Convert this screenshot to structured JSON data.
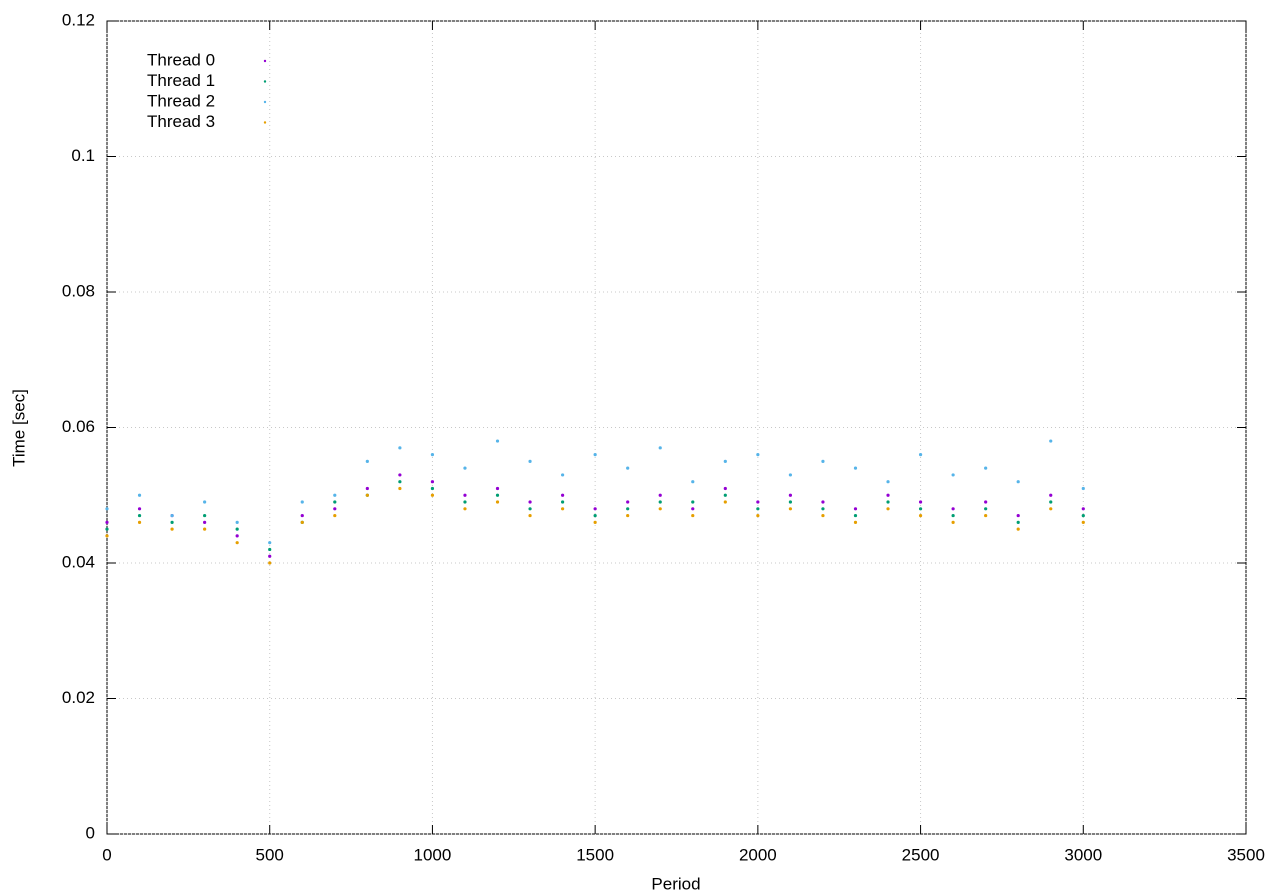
{
  "chart_data": {
    "type": "scatter",
    "xlabel": "Period",
    "ylabel": "Time [sec]",
    "x": [
      0,
      100,
      200,
      300,
      400,
      500,
      600,
      700,
      800,
      900,
      1000,
      1100,
      1200,
      1300,
      1400,
      1500,
      1600,
      1700,
      1800,
      1900,
      2000,
      2100,
      2200,
      2300,
      2400,
      2500,
      2600,
      2700,
      2800,
      2900,
      3000
    ],
    "series": [
      {
        "name": "Thread 0",
        "color": "#9400d3",
        "values": [
          0.046,
          0.048,
          0.047,
          0.046,
          0.044,
          0.041,
          0.047,
          0.048,
          0.051,
          0.053,
          0.052,
          0.05,
          0.051,
          0.049,
          0.05,
          0.048,
          0.049,
          0.05,
          0.048,
          0.051,
          0.049,
          0.05,
          0.049,
          0.048,
          0.05,
          0.049,
          0.048,
          0.049,
          0.047,
          0.05,
          0.048
        ]
      },
      {
        "name": "Thread 1",
        "color": "#009e73",
        "values": [
          0.045,
          0.047,
          0.046,
          0.047,
          0.045,
          0.042,
          0.046,
          0.049,
          0.05,
          0.052,
          0.051,
          0.049,
          0.05,
          0.048,
          0.049,
          0.047,
          0.048,
          0.049,
          0.049,
          0.05,
          0.048,
          0.049,
          0.048,
          0.047,
          0.049,
          0.048,
          0.047,
          0.048,
          0.046,
          0.049,
          0.047
        ]
      },
      {
        "name": "Thread 2",
        "color": "#56b4e9",
        "values": [
          0.048,
          0.05,
          0.047,
          0.049,
          0.046,
          0.043,
          0.049,
          0.05,
          0.055,
          0.057,
          0.056,
          0.054,
          0.058,
          0.055,
          0.053,
          0.056,
          0.054,
          0.057,
          0.052,
          0.055,
          0.056,
          0.053,
          0.055,
          0.054,
          0.052,
          0.056,
          0.053,
          0.054,
          0.052,
          0.058,
          0.051
        ]
      },
      {
        "name": "Thread 3",
        "color": "#e69f00",
        "values": [
          0.044,
          0.046,
          0.045,
          0.045,
          0.043,
          0.04,
          0.046,
          0.047,
          0.05,
          0.051,
          0.05,
          0.048,
          0.049,
          0.047,
          0.048,
          0.046,
          0.047,
          0.048,
          0.047,
          0.049,
          0.047,
          0.048,
          0.047,
          0.046,
          0.048,
          0.047,
          0.046,
          0.047,
          0.045,
          0.048,
          0.046
        ]
      }
    ],
    "xlim": [
      0,
      3500
    ],
    "xticks": [
      0,
      500,
      1000,
      1500,
      2000,
      2500,
      3000,
      3500
    ],
    "ylim": [
      0,
      0.12
    ],
    "yticks": [
      0,
      0.02,
      0.04,
      0.06,
      0.08,
      0.1,
      0.12
    ],
    "grid": true,
    "legend": "top-left"
  }
}
